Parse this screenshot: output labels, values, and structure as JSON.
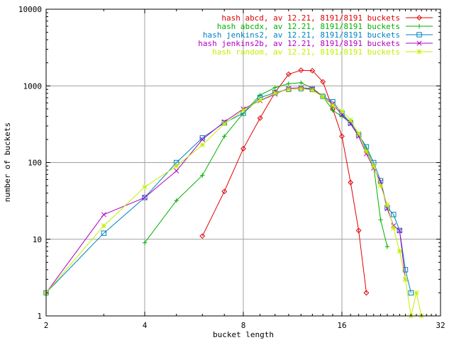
{
  "chart_data": {
    "type": "line",
    "title": "",
    "xlabel": "bucket length",
    "ylabel": "number of buckets",
    "x_scale": "log2",
    "y_scale": "log10",
    "xlim": [
      2,
      32
    ],
    "ylim": [
      1,
      10000
    ],
    "x_ticks": [
      2,
      4,
      8,
      16,
      32
    ],
    "x_tick_labels": [
      "2",
      "4",
      "8",
      "16",
      "32"
    ],
    "y_ticks": [
      1,
      10,
      100,
      1000,
      10000
    ],
    "y_tick_labels": [
      "1",
      "10",
      "100",
      "1000",
      "10000"
    ],
    "grid": true,
    "legend_position": "top-right",
    "series": [
      {
        "name": "hash abcd, av 12.21, 8191/8191 buckets",
        "color": "#e00000",
        "marker": "diamond",
        "x": [
          6,
          7,
          8,
          9,
          10,
          11,
          12,
          13,
          14,
          15,
          16,
          17,
          18,
          19
        ],
        "y": [
          11,
          42,
          152,
          380,
          820,
          1420,
          1600,
          1580,
          1130,
          500,
          220,
          55,
          13,
          2
        ]
      },
      {
        "name": "hash abcdx, av 12.21, 8191/8191 buckets",
        "color": "#00b000",
        "marker": "plus",
        "x": [
          4,
          5,
          6,
          7,
          8,
          9,
          10,
          11,
          12,
          13,
          14,
          15,
          16,
          17,
          18,
          19,
          20,
          21,
          22
        ],
        "y": [
          9,
          32,
          68,
          220,
          440,
          760,
          950,
          1070,
          1100,
          930,
          730,
          480,
          400,
          330,
          230,
          150,
          90,
          18,
          8
        ]
      },
      {
        "name": "hash jenkins2, av 12.21, 8191/8191 buckets",
        "color": "#0080c0",
        "marker": "square",
        "x": [
          2,
          3,
          4,
          5,
          6,
          7,
          8,
          9,
          10,
          11,
          12,
          13,
          14,
          15,
          16,
          17,
          18,
          19,
          20,
          21,
          22,
          23,
          24,
          25,
          26
        ],
        "y": [
          2,
          12,
          35,
          100,
          210,
          330,
          440,
          700,
          820,
          900,
          920,
          900,
          730,
          620,
          440,
          330,
          230,
          160,
          100,
          58,
          26,
          21,
          13,
          4,
          2
        ]
      },
      {
        "name": "hash jenkins2b, av 12.21, 8191/8191 buckets",
        "color": "#b000c0",
        "marker": "cross",
        "x": [
          2,
          3,
          4,
          5,
          6,
          7,
          8,
          9,
          10,
          11,
          12,
          13,
          14,
          15,
          16,
          17,
          18,
          19,
          20,
          21,
          22,
          23,
          24,
          25
        ],
        "y": [
          2,
          21,
          35,
          78,
          200,
          340,
          500,
          640,
          780,
          930,
          950,
          920,
          720,
          580,
          420,
          320,
          220,
          130,
          85,
          56,
          25,
          15,
          13,
          3
        ]
      },
      {
        "name": "hash random, av 12.21, 8191/8191 buckets",
        "color": "#c0f000",
        "marker": "star",
        "x": [
          2,
          3,
          4,
          5,
          6,
          7,
          8,
          9,
          10,
          11,
          12,
          13,
          14,
          15,
          16,
          17,
          18,
          19,
          20,
          21,
          22,
          23,
          24,
          25,
          26,
          27,
          28
        ],
        "y": [
          2,
          15,
          48,
          90,
          170,
          320,
          480,
          650,
          800,
          900,
          920,
          880,
          720,
          560,
          470,
          360,
          240,
          140,
          90,
          50,
          28,
          14,
          7,
          3,
          1,
          2,
          1
        ]
      }
    ]
  }
}
